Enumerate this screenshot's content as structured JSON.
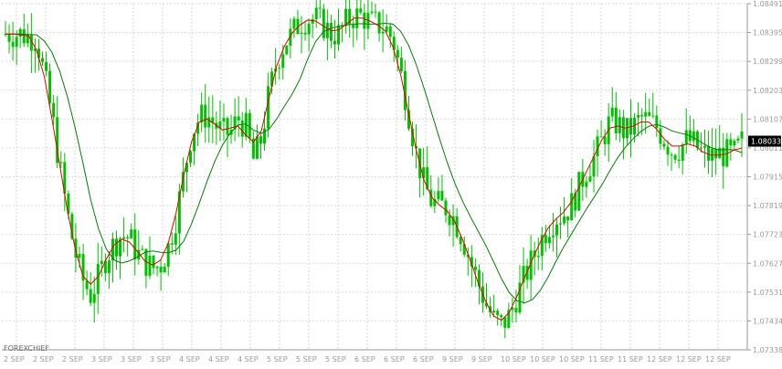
{
  "chart_data": {
    "type": "candlestick",
    "watermark": "FOREXCHIEF",
    "current_price": "1.08033",
    "ylim": [
      1.07338,
      1.08491
    ],
    "y_ticks": [
      "1.08491",
      "1.08395",
      "1.08299",
      "1.08203",
      "1.08107",
      "1.08011",
      "1.07915",
      "1.07819",
      "1.07723",
      "1.07627",
      "1.07531",
      "1.07434",
      "1.07338"
    ],
    "x_ticks": [
      "2 SEP",
      "2 SEP",
      "2 SEP",
      "3 SEP",
      "3 SEP",
      "3 SEP",
      "4 SEP",
      "4 SEP",
      "4 SEP",
      "5 SEP",
      "5 SEP",
      "5 SEP",
      "6 SEP",
      "6 SEP",
      "6 SEP",
      "9 SEP",
      "9 SEP",
      "10 SEP",
      "10 SEP",
      "10 SEP",
      "11 SEP",
      "11 SEP",
      "12 SEP",
      "12 SEP",
      "12 SEP"
    ],
    "grid": true,
    "colors": {
      "candle": "#00c000",
      "ma_fast": "#e00000",
      "ma_slow": "#008000",
      "grid": "#d9d9d9",
      "label_bg": "#000000",
      "label_text": "#ffffff"
    },
    "close_series": [
      1.0839,
      1.0839,
      1.0839,
      1.0838,
      1.0838,
      1.0825,
      1.0812,
      1.0795,
      1.0779,
      1.0766,
      1.0757,
      1.0752,
      1.0758,
      1.0765,
      1.0769,
      1.0772,
      1.0771,
      1.0766,
      1.0763,
      1.0761,
      1.0762,
      1.0768,
      1.0778,
      1.0792,
      1.0806,
      1.0811,
      1.0812,
      1.0809,
      1.0806,
      1.0806,
      1.0811,
      1.0808,
      1.0797,
      1.0804,
      1.0819,
      1.083,
      1.0836,
      1.0839,
      1.0843,
      1.0844,
      1.0844,
      1.0842,
      1.0839,
      1.0839,
      1.0843,
      1.0845,
      1.0845,
      1.0843,
      1.0842,
      1.0841,
      1.0837,
      1.0826,
      1.0813,
      1.0799,
      1.0789,
      1.0783,
      1.0782,
      1.0781,
      1.0777,
      1.0771,
      1.0763,
      1.0756,
      1.0749,
      1.0744,
      1.0742,
      1.0745,
      1.0752,
      1.0758,
      1.0764,
      1.077,
      1.0775,
      1.0778,
      1.0779,
      1.0782,
      1.0788,
      1.0794,
      1.0798,
      1.0804,
      1.081,
      1.0809,
      1.0806,
      1.0808,
      1.0811,
      1.081,
      1.0808,
      1.0804,
      1.08,
      1.0801,
      1.0804,
      1.0802,
      1.0799,
      1.0798,
      1.0799,
      1.0799,
      1.0799,
      1.0803
    ],
    "ma_fast": [
      1.0839,
      1.0839,
      1.0839,
      1.0838,
      1.0838,
      1.0825,
      1.0812,
      1.0795,
      1.0779,
      1.0766,
      1.0757,
      1.0752,
      1.0758,
      1.0765,
      1.0769,
      1.0772,
      1.0771,
      1.0766,
      1.0763,
      1.0761,
      1.0762,
      1.0768,
      1.0778,
      1.0792,
      1.0806,
      1.0811,
      1.0812,
      1.0809,
      1.0806,
      1.0806,
      1.0811,
      1.0808,
      1.0797,
      1.0804,
      1.0819,
      1.083,
      1.0836,
      1.0839,
      1.0843,
      1.0844,
      1.0844,
      1.0842,
      1.0839,
      1.0839,
      1.0843,
      1.0845,
      1.0845,
      1.0843,
      1.0842,
      1.0841,
      1.0837,
      1.0826,
      1.0813,
      1.0799,
      1.0789,
      1.0783,
      1.0782,
      1.0781,
      1.0777,
      1.0771,
      1.0763,
      1.0756,
      1.0749,
      1.0744,
      1.0742,
      1.0745,
      1.0752,
      1.0758,
      1.0764,
      1.077,
      1.0775,
      1.0778,
      1.0779,
      1.0782,
      1.0788,
      1.0794,
      1.0798,
      1.0804,
      1.081,
      1.0809,
      1.0806,
      1.0808,
      1.0811,
      1.081,
      1.0808,
      1.0804,
      1.08,
      1.0801,
      1.0804,
      1.0802,
      1.0799,
      1.0798,
      1.0799,
      1.0799,
      1.0799,
      1.0803
    ]
  }
}
